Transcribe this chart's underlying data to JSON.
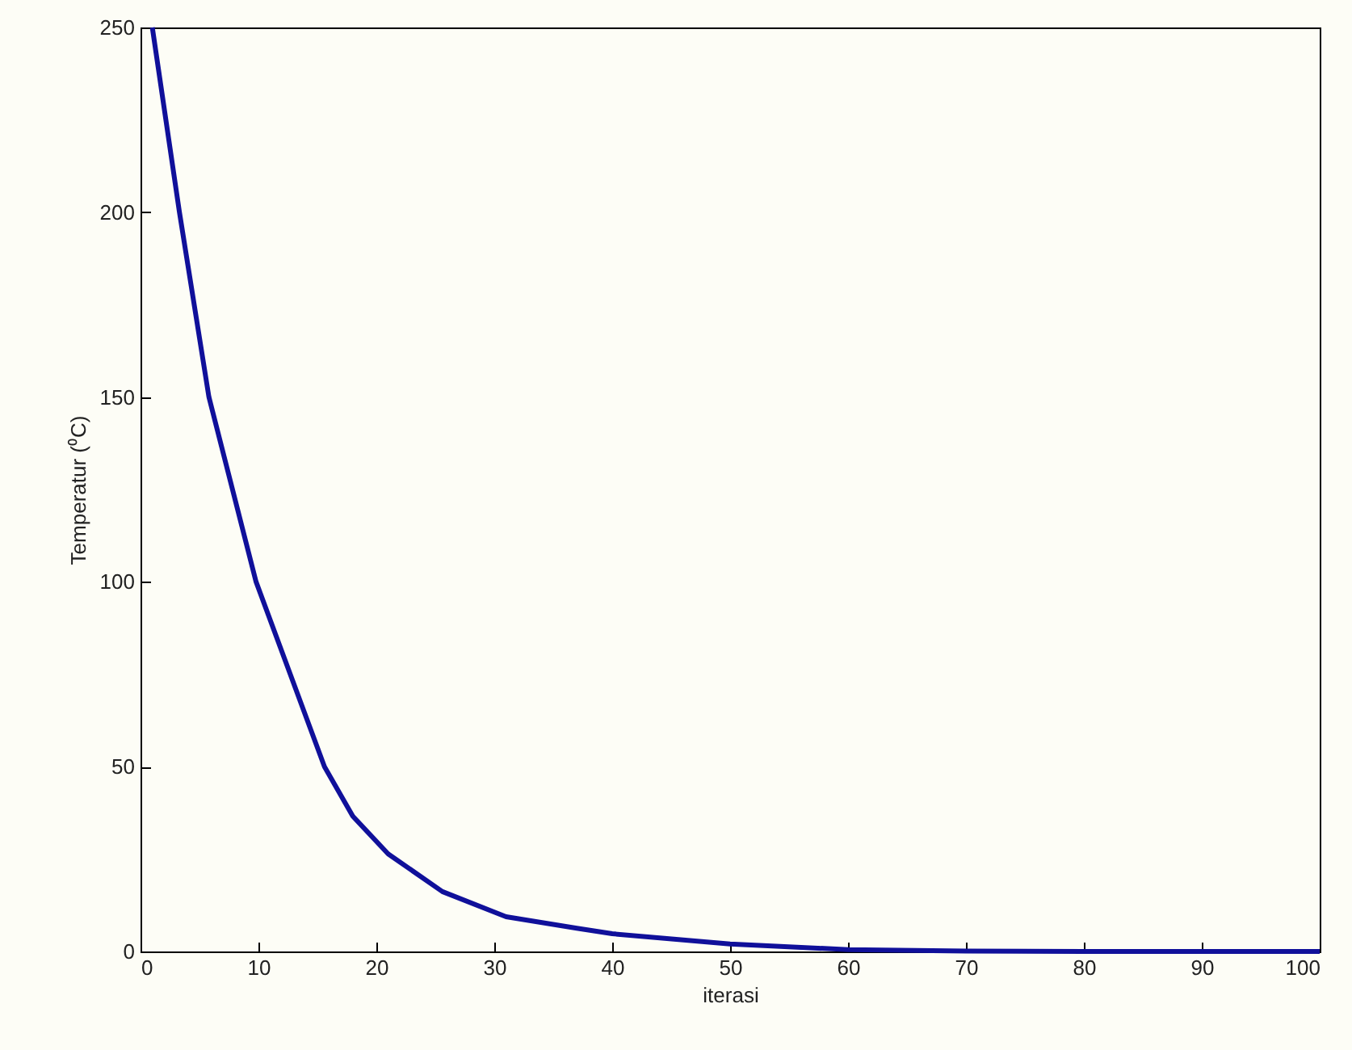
{
  "chart_data": {
    "type": "line",
    "xlabel": "iterasi",
    "ylabel": "Temperatur (⁰C)",
    "x": [
      1,
      3.3,
      5.8,
      9.8,
      15.6,
      18,
      21,
      25.6,
      31,
      37,
      40,
      50,
      60,
      70,
      80,
      90,
      100
    ],
    "series": [
      {
        "color": "#10109a",
        "values": [
          250,
          200,
          150,
          100,
          50,
          36.6,
          26.4,
          16.2,
          9.4,
          6.3,
          4.8,
          2,
          0.5,
          0.1,
          0,
          0,
          0
        ]
      }
    ],
    "xlim": [
      0,
      100
    ],
    "xticks": [
      0,
      10,
      20,
      30,
      40,
      50,
      60,
      70,
      80,
      90,
      100
    ],
    "ylim": [
      0,
      250
    ],
    "yticks": [
      0,
      50,
      100,
      150,
      200,
      250
    ]
  }
}
